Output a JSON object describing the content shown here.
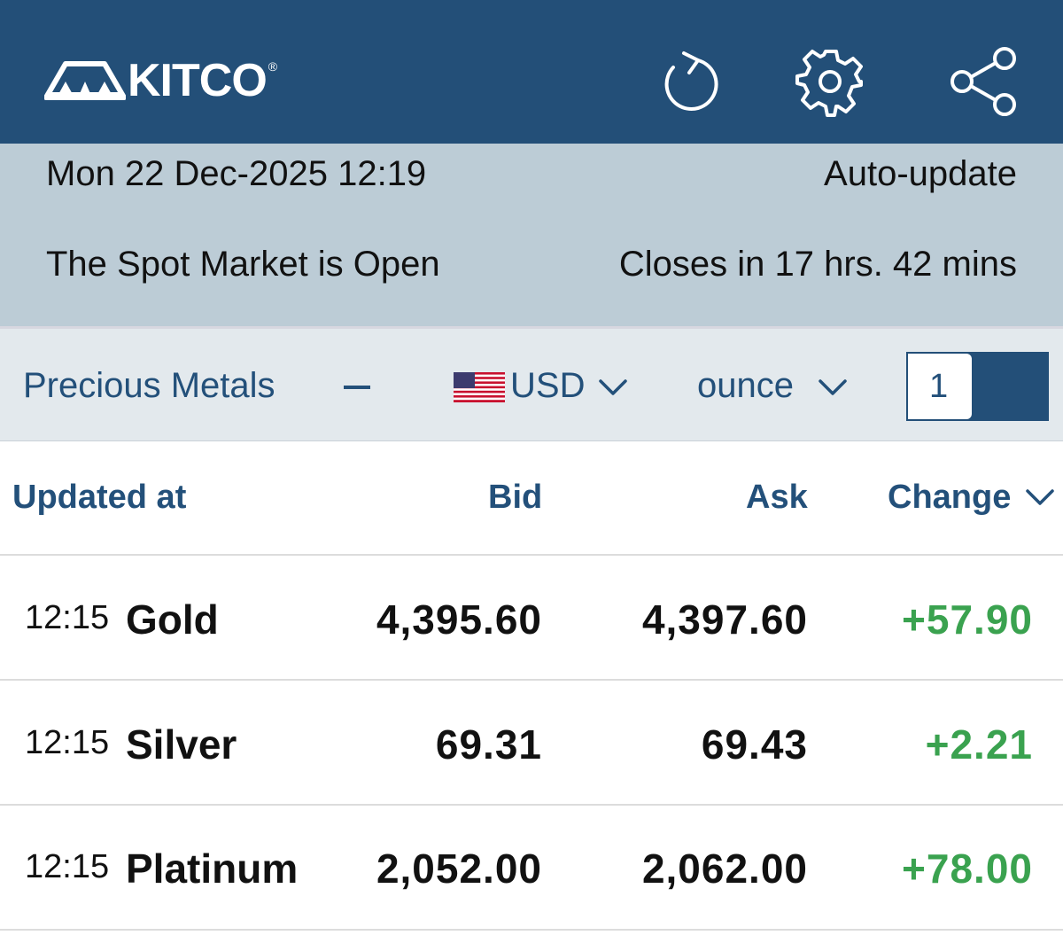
{
  "header": {
    "logo_text": "KITCO",
    "logo_reg": "®",
    "icons": [
      "refresh-icon",
      "gear-icon",
      "share-icon"
    ],
    "color": "#234f78"
  },
  "status": {
    "datetime": "Mon 22 Dec-2025 12:19",
    "auto_update": "Auto-update",
    "market_status": "The Spot Market is Open",
    "closes_in": "Closes in 17 hrs. 42 mins"
  },
  "filters": {
    "category": "Precious Metals",
    "currency": "USD",
    "unit": "ounce",
    "quantity": "1"
  },
  "table": {
    "columns": [
      "Updated at",
      "Bid",
      "Ask",
      "Change"
    ],
    "rows": [
      {
        "time": "12:15",
        "name": "Gold",
        "bid": "4,395.60",
        "ask": "4,397.60",
        "change": "+57.90"
      },
      {
        "time": "12:15",
        "name": "Silver",
        "bid": "69.31",
        "ask": "69.43",
        "change": "+2.21"
      },
      {
        "time": "12:15",
        "name": "Platinum",
        "bid": "2,052.00",
        "ask": "2,062.00",
        "change": "+78.00"
      }
    ]
  },
  "colors": {
    "accent": "#23507a",
    "positive": "#3aa24f",
    "status_bg": "#bcccd6"
  }
}
